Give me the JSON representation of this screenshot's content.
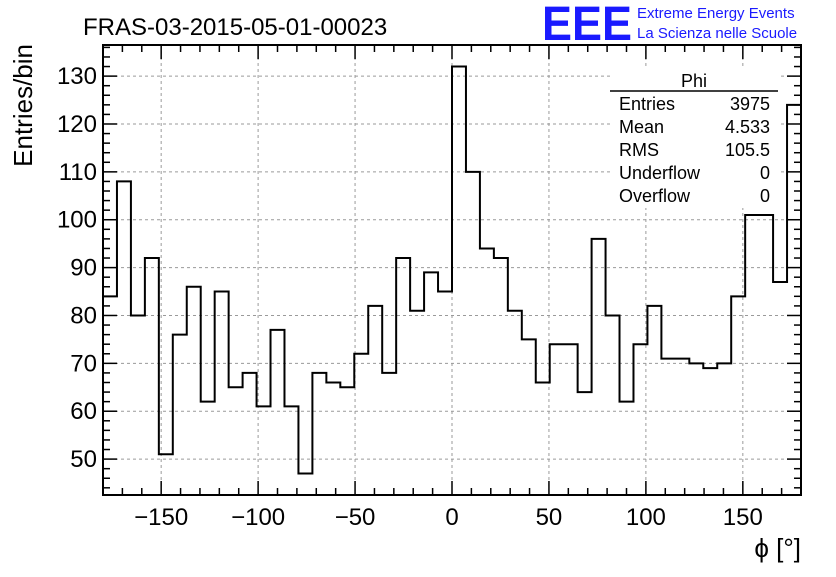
{
  "title": "FRAS-03-2015-05-01-00023",
  "logo": {
    "letters": "EEE",
    "line1": "Extreme Energy Events",
    "line2": "La Scienza nelle Scuole",
    "color": "#1a1aff"
  },
  "stats_box": {
    "name": "Phi",
    "rows": [
      {
        "label": "Entries",
        "value": "3975"
      },
      {
        "label": "Mean",
        "value": "4.533"
      },
      {
        "label": "RMS",
        "value": "105.5"
      },
      {
        "label": "Underflow",
        "value": "0"
      },
      {
        "label": "Overflow",
        "value": "0"
      }
    ]
  },
  "chart_data": {
    "type": "histogram",
    "title": "FRAS-03-2015-05-01-00023",
    "xlabel": "ϕ [°]",
    "ylabel": "Entries/bin",
    "xlim": [
      -180,
      180
    ],
    "ylim": [
      42.5,
      136.5
    ],
    "grid": true,
    "line_color": "#000000",
    "x_ticks": [
      -150,
      -100,
      -50,
      0,
      50,
      100,
      150
    ],
    "x_tick_labels": [
      "−150",
      "−100",
      "−50",
      "0",
      "50",
      "100",
      "150"
    ],
    "y_ticks": [
      50,
      60,
      70,
      80,
      90,
      100,
      110,
      120,
      130
    ],
    "y_tick_labels": [
      "50",
      "60",
      "70",
      "80",
      "90",
      "100",
      "110",
      "120",
      "130"
    ],
    "bin_width": 7.2,
    "bin_edges_start": -180,
    "values": [
      84,
      108,
      80,
      92,
      51,
      76,
      86,
      62,
      85,
      65,
      68,
      61,
      77,
      61,
      47,
      68,
      66,
      65,
      72,
      82,
      68,
      92,
      81,
      89,
      85,
      132,
      110,
      94,
      92,
      81,
      75,
      66,
      74,
      74,
      64,
      96,
      80,
      62,
      74,
      82,
      71,
      71,
      70,
      69,
      70,
      84,
      101,
      101,
      87,
      124
    ]
  }
}
